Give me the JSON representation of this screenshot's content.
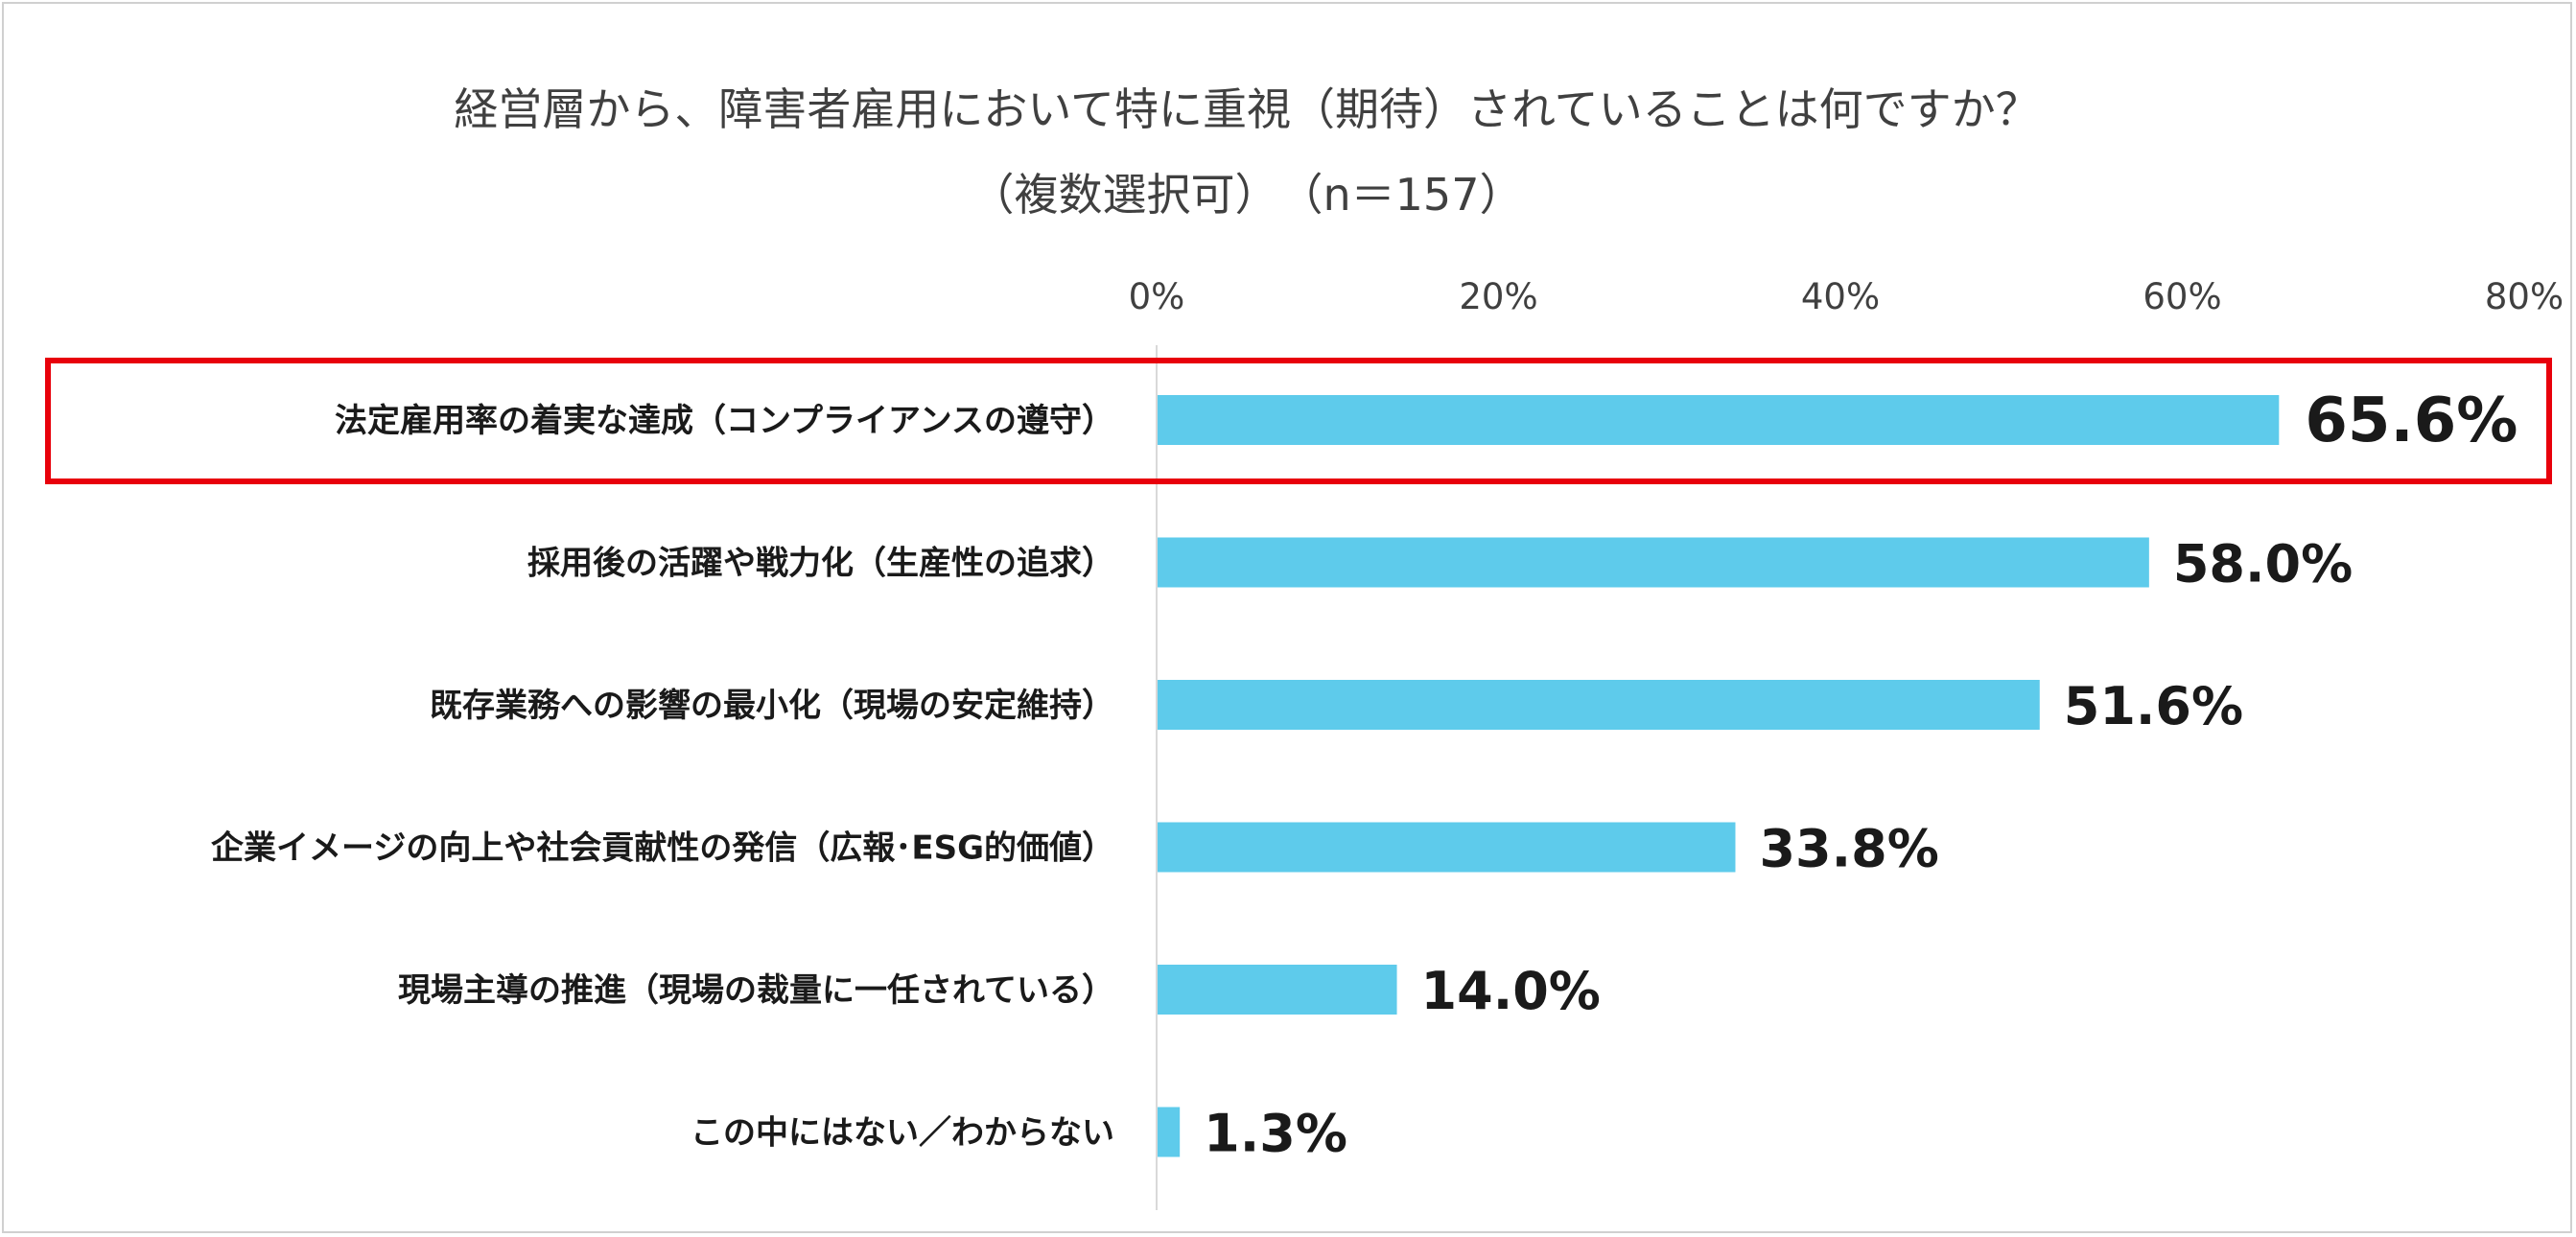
{
  "chart_data": {
    "type": "bar",
    "orientation": "horizontal",
    "title": "経営層から、障害者雇用において特に重視（期待）されていることは何ですか？",
    "subtitle": "（複数選択可）　（n＝157）",
    "categories": [
      "法定雇用率の着実な達成（コンプライアンスの遵守）",
      "採用後の活躍や戦力化（生産性の追求）",
      "既存業務への影響の最小化（現場の安定維持）",
      "企業イメージの向上や社会貢献性の発信（広報･ESG的価値）",
      "現場主導の推進（現場の裁量に一任されている）",
      "この中にはない／わからない"
    ],
    "values": [
      65.6,
      58.0,
      51.6,
      33.8,
      14.0,
      1.3
    ],
    "value_labels": [
      "65.6%",
      "58.0%",
      "51.6%",
      "33.8%",
      "14.0%",
      "1.3%"
    ],
    "xlim": [
      0,
      80
    ],
    "x_ticks": [
      0,
      20,
      40,
      60,
      80
    ],
    "x_tick_labels": [
      "0%",
      "20%",
      "40%",
      "60%",
      "80%"
    ],
    "x_axis_position": "top",
    "grid": false,
    "bar_color": "#5ecbeb",
    "highlight_index": 0,
    "highlight_color": "#e8000b"
  }
}
